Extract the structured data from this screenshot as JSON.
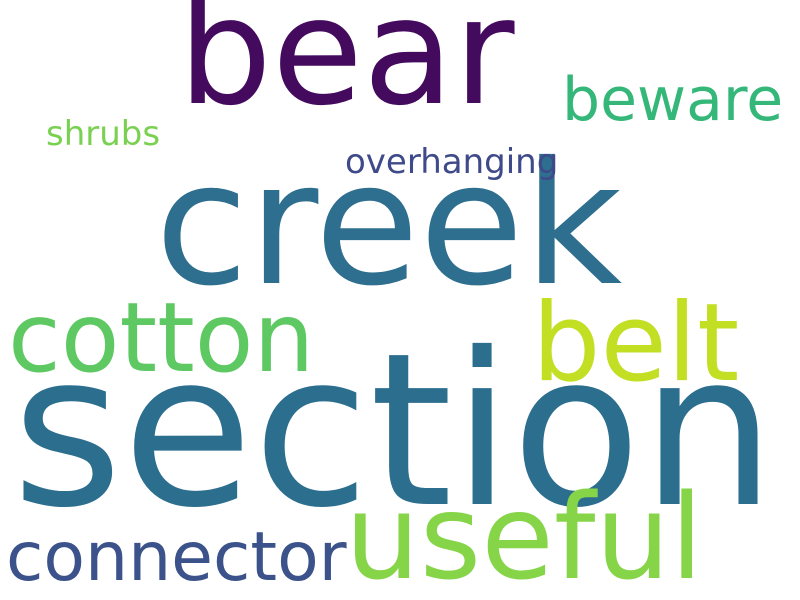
{
  "words": [
    {
      "key": "bear",
      "text": "bear",
      "color": "#440a5e"
    },
    {
      "key": "creek",
      "text": "creek",
      "color": "#2e6e8e"
    },
    {
      "key": "section",
      "text": "section",
      "color": "#2c6e8e"
    },
    {
      "key": "cotton",
      "text": "cotton",
      "color": "#5ec962"
    },
    {
      "key": "belt",
      "text": "belt",
      "color": "#c2df23"
    },
    {
      "key": "useful",
      "text": "useful",
      "color": "#86d549"
    },
    {
      "key": "connector",
      "text": "connector",
      "color": "#3b528b"
    },
    {
      "key": "beware",
      "text": "beware",
      "color": "#35b779"
    },
    {
      "key": "overhanging",
      "text": "overhanging",
      "color": "#3e4a89"
    },
    {
      "key": "shrubs",
      "text": "shrubs",
      "color": "#7ad151"
    }
  ]
}
